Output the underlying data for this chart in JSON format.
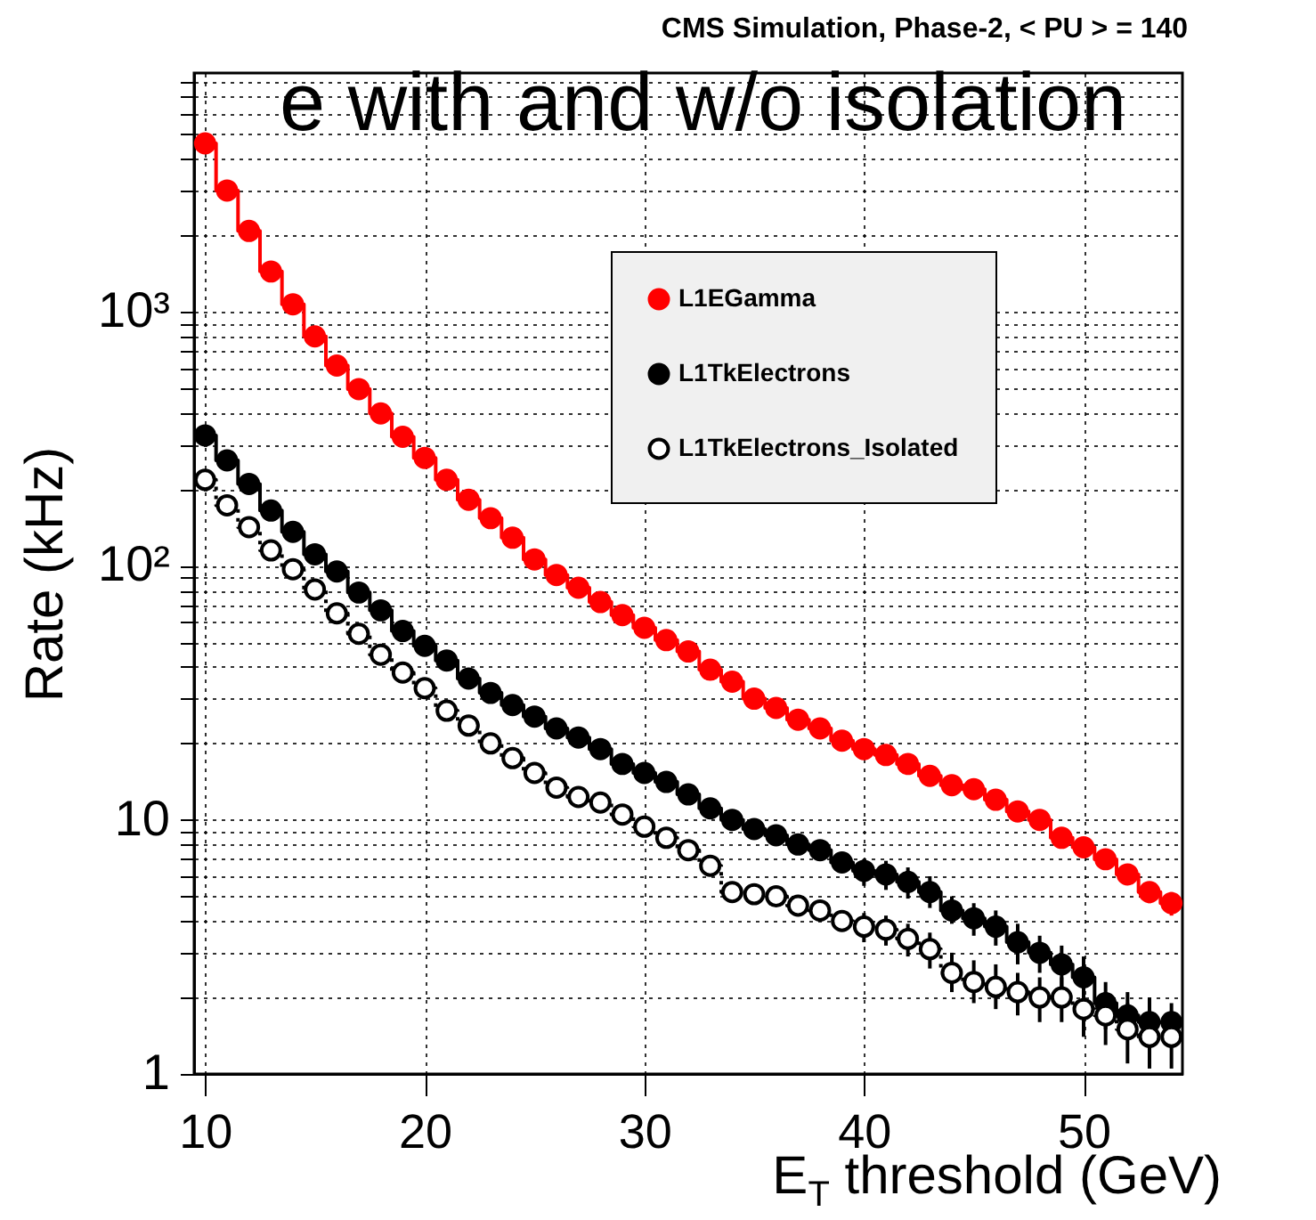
{
  "chart_data": {
    "type": "step",
    "title": "CMS Simulation, Phase-2, < PU > = 140",
    "xlabel": "E$_{T}$ threshold (GeV)",
    "ylabel": "Rate (kHz)",
    "annotations": [
      "e with and w/o isolation"
    ],
    "x": [
      10,
      11,
      12,
      13,
      14,
      15,
      16,
      17,
      18,
      19,
      20,
      21,
      22,
      23,
      24,
      25,
      26,
      27,
      28,
      29,
      30,
      31,
      32,
      33,
      34,
      35,
      36,
      37,
      38,
      39,
      40,
      41,
      42,
      43,
      44,
      45,
      46,
      47,
      48,
      49,
      50,
      51,
      52,
      53,
      54
    ],
    "series": [
      {
        "name": "L1EGamma",
        "color": "#ff0000",
        "line_style": "solid",
        "values": [
          4600,
          3000,
          2080,
          1440,
          1070,
          800,
          614,
          496,
          398,
          322,
          266,
          218,
          182,
          154,
          129,
          106,
          92,
          82,
          72,
          64,
          57,
          51,
          46,
          39,
          35,
          30,
          27.6,
          24.8,
          22.9,
          20.5,
          19,
          18,
          16.6,
          14.9,
          13.7,
          13.2,
          12,
          10.8,
          10,
          8.5,
          7.8,
          7,
          6.1,
          5.2,
          4.7
        ],
        "errors": [
          null,
          null,
          null,
          null,
          null,
          null,
          null,
          null,
          null,
          null,
          null,
          null,
          null,
          null,
          null,
          null,
          null,
          null,
          null,
          null,
          null,
          null,
          null,
          null,
          null,
          null,
          null,
          null,
          null,
          null,
          null,
          null,
          null,
          null,
          null,
          null,
          null,
          null,
          [
            9.3,
            10.6
          ],
          [
            7.9,
            9.1
          ],
          [
            7.2,
            8.4
          ],
          [
            6.5,
            7.6
          ],
          [
            5.6,
            6.6
          ],
          [
            4.7,
            5.7
          ],
          [
            4.2,
            5.2
          ]
        ]
      },
      {
        "name": "L1TkElectrons",
        "color": "#000000",
        "line_style": "solid",
        "values": [
          326,
          260,
          210,
          165,
          136,
          111,
          95,
          78.5,
          66.8,
          55.4,
          48.4,
          42.4,
          36,
          31.6,
          28.3,
          25.5,
          22.9,
          21.1,
          19,
          16.6,
          15.3,
          14.1,
          12.6,
          11.1,
          10,
          9.2,
          8.7,
          8,
          7.6,
          6.8,
          6.3,
          6.1,
          5.7,
          5.2,
          4.4,
          4.1,
          3.8,
          3.3,
          3,
          2.7,
          2.4,
          1.9,
          1.7,
          1.6,
          1.6
        ],
        "errors": [
          null,
          null,
          null,
          null,
          null,
          null,
          null,
          null,
          null,
          null,
          null,
          null,
          null,
          null,
          null,
          null,
          null,
          null,
          null,
          null,
          null,
          null,
          null,
          null,
          null,
          null,
          null,
          null,
          null,
          null,
          [
            5.5,
            7.0
          ],
          [
            5.3,
            6.9
          ],
          [
            4.9,
            6.5
          ],
          [
            4.5,
            6.0
          ],
          [
            3.9,
            5.0
          ],
          [
            3.5,
            4.7
          ],
          [
            3.2,
            4.4
          ],
          [
            2.7,
            3.9
          ],
          [
            2.5,
            3.5
          ],
          [
            2.2,
            3.2
          ],
          [
            2.0,
            2.9
          ],
          [
            1.5,
            2.3
          ],
          [
            1.4,
            2.1
          ],
          [
            1.3,
            2.0
          ],
          [
            1.3,
            1.9
          ]
        ]
      },
      {
        "name": "L1TkElectrons_Isolated",
        "color": "#000000",
        "line_style": "dotted",
        "values": [
          218,
          173,
          142,
          115,
          97,
          80.7,
          65,
          54,
          44.7,
          38,
          33,
          26.9,
          23.5,
          20,
          17.5,
          15.3,
          13.4,
          12.3,
          11.7,
          10.5,
          9.4,
          8.5,
          7.6,
          6.6,
          5.2,
          5.1,
          5,
          4.6,
          4.4,
          4,
          3.8,
          3.7,
          3.4,
          3.1,
          2.5,
          2.3,
          2.2,
          2.1,
          2,
          2,
          1.8,
          1.7,
          1.5,
          1.4,
          1.4
        ],
        "errors": [
          null,
          null,
          null,
          null,
          null,
          null,
          null,
          null,
          null,
          null,
          null,
          null,
          null,
          null,
          null,
          null,
          null,
          null,
          null,
          null,
          null,
          null,
          null,
          null,
          null,
          null,
          null,
          null,
          null,
          null,
          [
            3.3,
            4.3
          ],
          [
            3.2,
            4.2
          ],
          [
            2.9,
            3.9
          ],
          [
            2.6,
            3.6
          ],
          [
            2.1,
            3.0
          ],
          [
            1.9,
            2.8
          ],
          [
            1.8,
            2.7
          ],
          [
            1.7,
            2.5
          ],
          [
            1.6,
            2.4
          ],
          [
            1.6,
            2.4
          ],
          [
            1.4,
            2.2
          ],
          [
            1.3,
            2.1
          ],
          [
            1.1,
            1.9
          ],
          [
            1.05,
            1.7
          ],
          [
            1.05,
            1.7
          ]
        ]
      }
    ],
    "xlim": [
      9.5,
      54.5
    ],
    "xticks": [
      10,
      20,
      30,
      40,
      50
    ],
    "ylim": [
      1,
      8700
    ],
    "yticks": [
      1,
      {
        "value": 2,
        "label": null
      },
      {
        "value": 3,
        "label": null
      },
      {
        "value": 4,
        "label": null
      },
      {
        "value": 5,
        "label": null
      },
      {
        "value": 6,
        "label": null
      },
      {
        "value": 7,
        "label": null
      },
      {
        "value": 8,
        "label": null
      },
      {
        "value": 9,
        "label": null
      },
      10,
      {
        "value": 20,
        "label": null
      },
      {
        "value": 30,
        "label": null
      },
      {
        "value": 40,
        "label": null
      },
      {
        "value": 50,
        "label": null
      },
      {
        "value": 60,
        "label": null
      },
      {
        "value": 70,
        "label": null
      },
      {
        "value": 80,
        "label": null
      },
      {
        "value": 90,
        "label": null
      },
      {
        "value": 100,
        "label": "10²"
      },
      {
        "value": 200,
        "label": null
      },
      {
        "value": 300,
        "label": null
      },
      {
        "value": 400,
        "label": null
      },
      {
        "value": 500,
        "label": null
      },
      {
        "value": 600,
        "label": null
      },
      {
        "value": 700,
        "label": null
      },
      {
        "value": 800,
        "label": null
      },
      {
        "value": 900,
        "label": null
      },
      {
        "value": 1000,
        "label": "10³"
      },
      {
        "value": 2000,
        "label": null
      },
      {
        "value": 3000,
        "label": null
      },
      {
        "value": 4000,
        "label": null
      },
      {
        "value": 5000,
        "label": null
      },
      {
        "value": 6000,
        "label": null
      },
      {
        "value": 7000,
        "label": null
      },
      {
        "value": 8000,
        "label": null
      }
    ],
    "log": true,
    "grid": true,
    "legend": "top right",
    "marker": "circle"
  }
}
